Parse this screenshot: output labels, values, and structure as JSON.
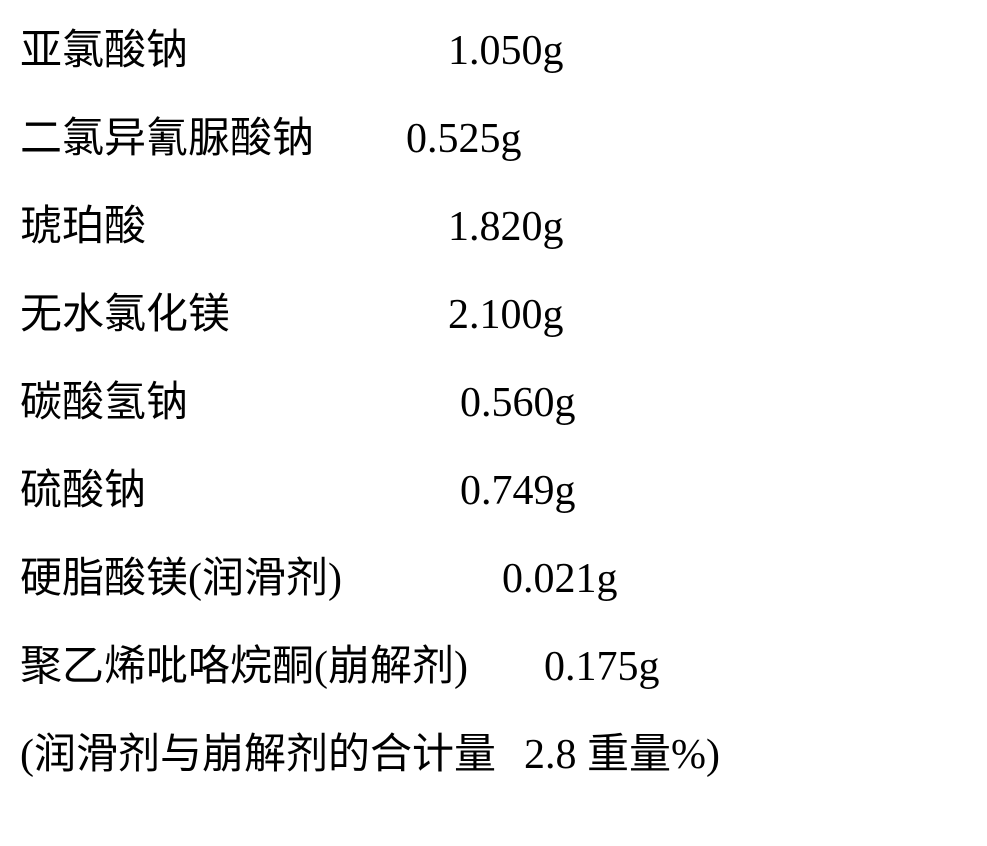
{
  "typography": {
    "font_family": "SimSun",
    "font_size_pt": 32,
    "color": "#000000",
    "background": "#ffffff"
  },
  "rows": [
    {
      "label": "亚氯酸钠",
      "value": "1.050g"
    },
    {
      "label": "二氯异氰脲酸钠",
      "value": "0.525g"
    },
    {
      "label": "琥珀酸",
      "value": "1.820g"
    },
    {
      "label": "无水氯化镁",
      "value": "2.100g"
    },
    {
      "label": "碳酸氢钠",
      "value": "0.560g"
    },
    {
      "label": "硫酸钠",
      "value": "0.749g"
    },
    {
      "label": "硬脂酸镁(润滑剂)",
      "value": "0.021g"
    },
    {
      "label": "聚乙烯吡咯烷酮(崩解剂)",
      "value": "0.175g"
    }
  ],
  "footer": {
    "prefix": "(润滑剂与崩解剂的合计量",
    "amount": "2.8",
    "unit": "重量%)"
  }
}
